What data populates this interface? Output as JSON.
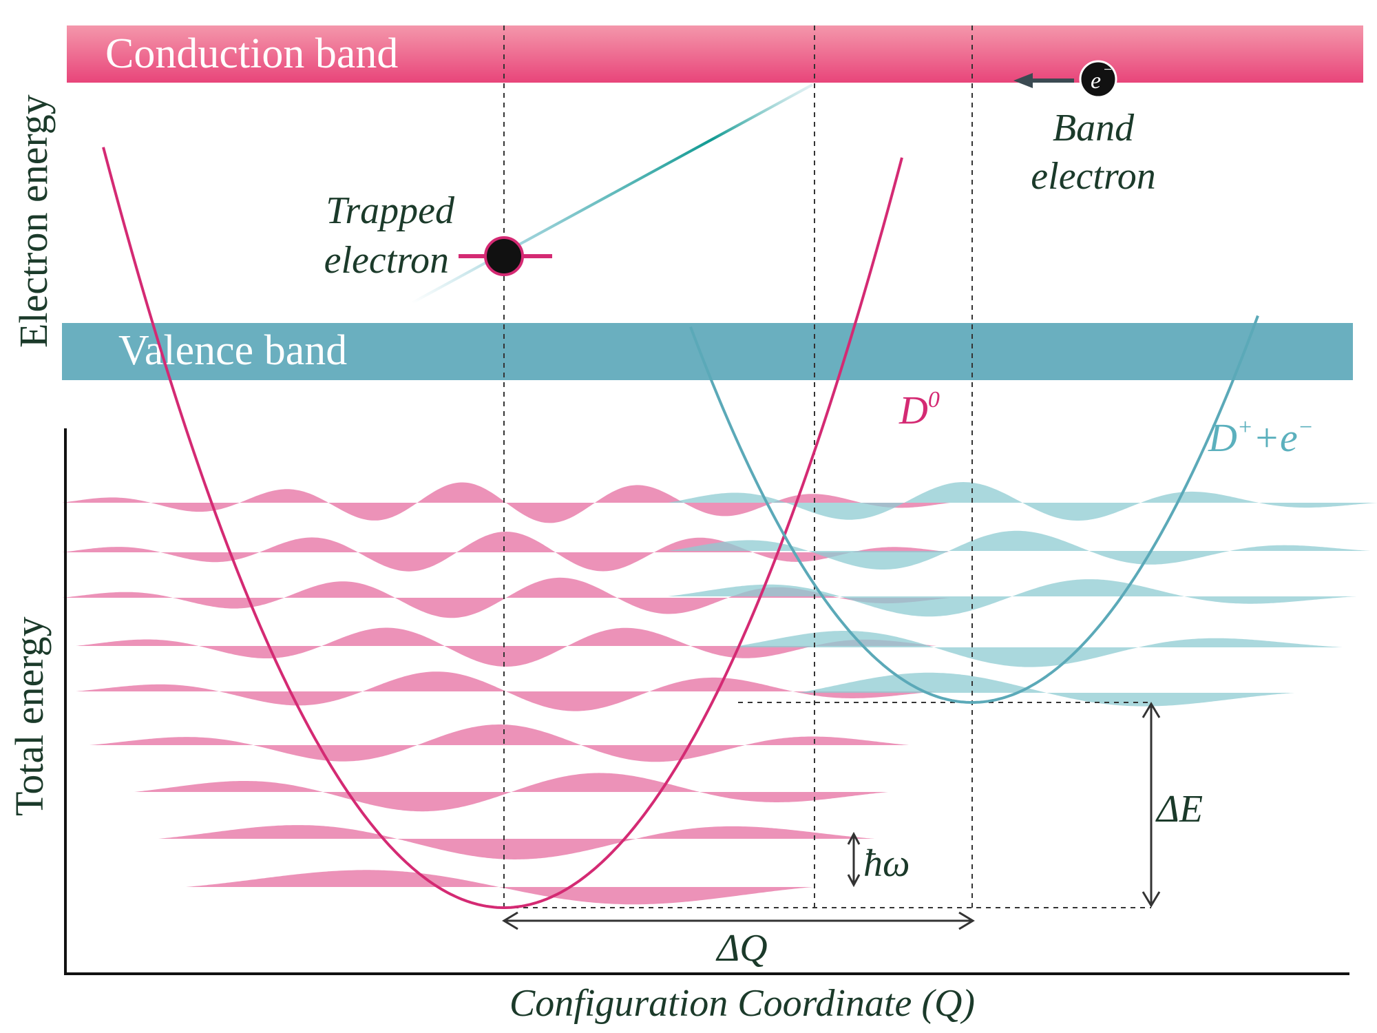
{
  "colors": {
    "conduction_band": "#e8457a",
    "valence_band": "#6aafbf",
    "neutral_state": "#d42a73",
    "ionized_state": "#5bb0bd",
    "wavefunction_pink": "#e97fab",
    "wavefunction_teal": "#8dcbd1",
    "text": "#1b3a2a"
  },
  "bands": {
    "conduction": "Conduction band",
    "valence": "Valence band"
  },
  "axes": {
    "y_top": "Electron energy",
    "y_bottom": "Total energy",
    "x": "Configuration Coordinate (Q)"
  },
  "labels": {
    "trapped_line1": "Trapped",
    "trapped_line2": "electron",
    "band_line1": "Band",
    "band_line2": "electron",
    "electron_symbol": "e",
    "electron_sup": "−",
    "delta_e": "ΔE",
    "delta_q": "ΔQ",
    "hbar_omega": "ħω"
  },
  "curves": {
    "neutral": {
      "base": "D",
      "sup": "0"
    },
    "ionized": {
      "base": "D",
      "sup": "+",
      "tail": "+e",
      "tail_sup": "−"
    }
  },
  "icons": {
    "trapped_electron": "filled-circle-icon",
    "band_electron": "electron-icon",
    "arrow_left": "arrow-left-icon"
  }
}
